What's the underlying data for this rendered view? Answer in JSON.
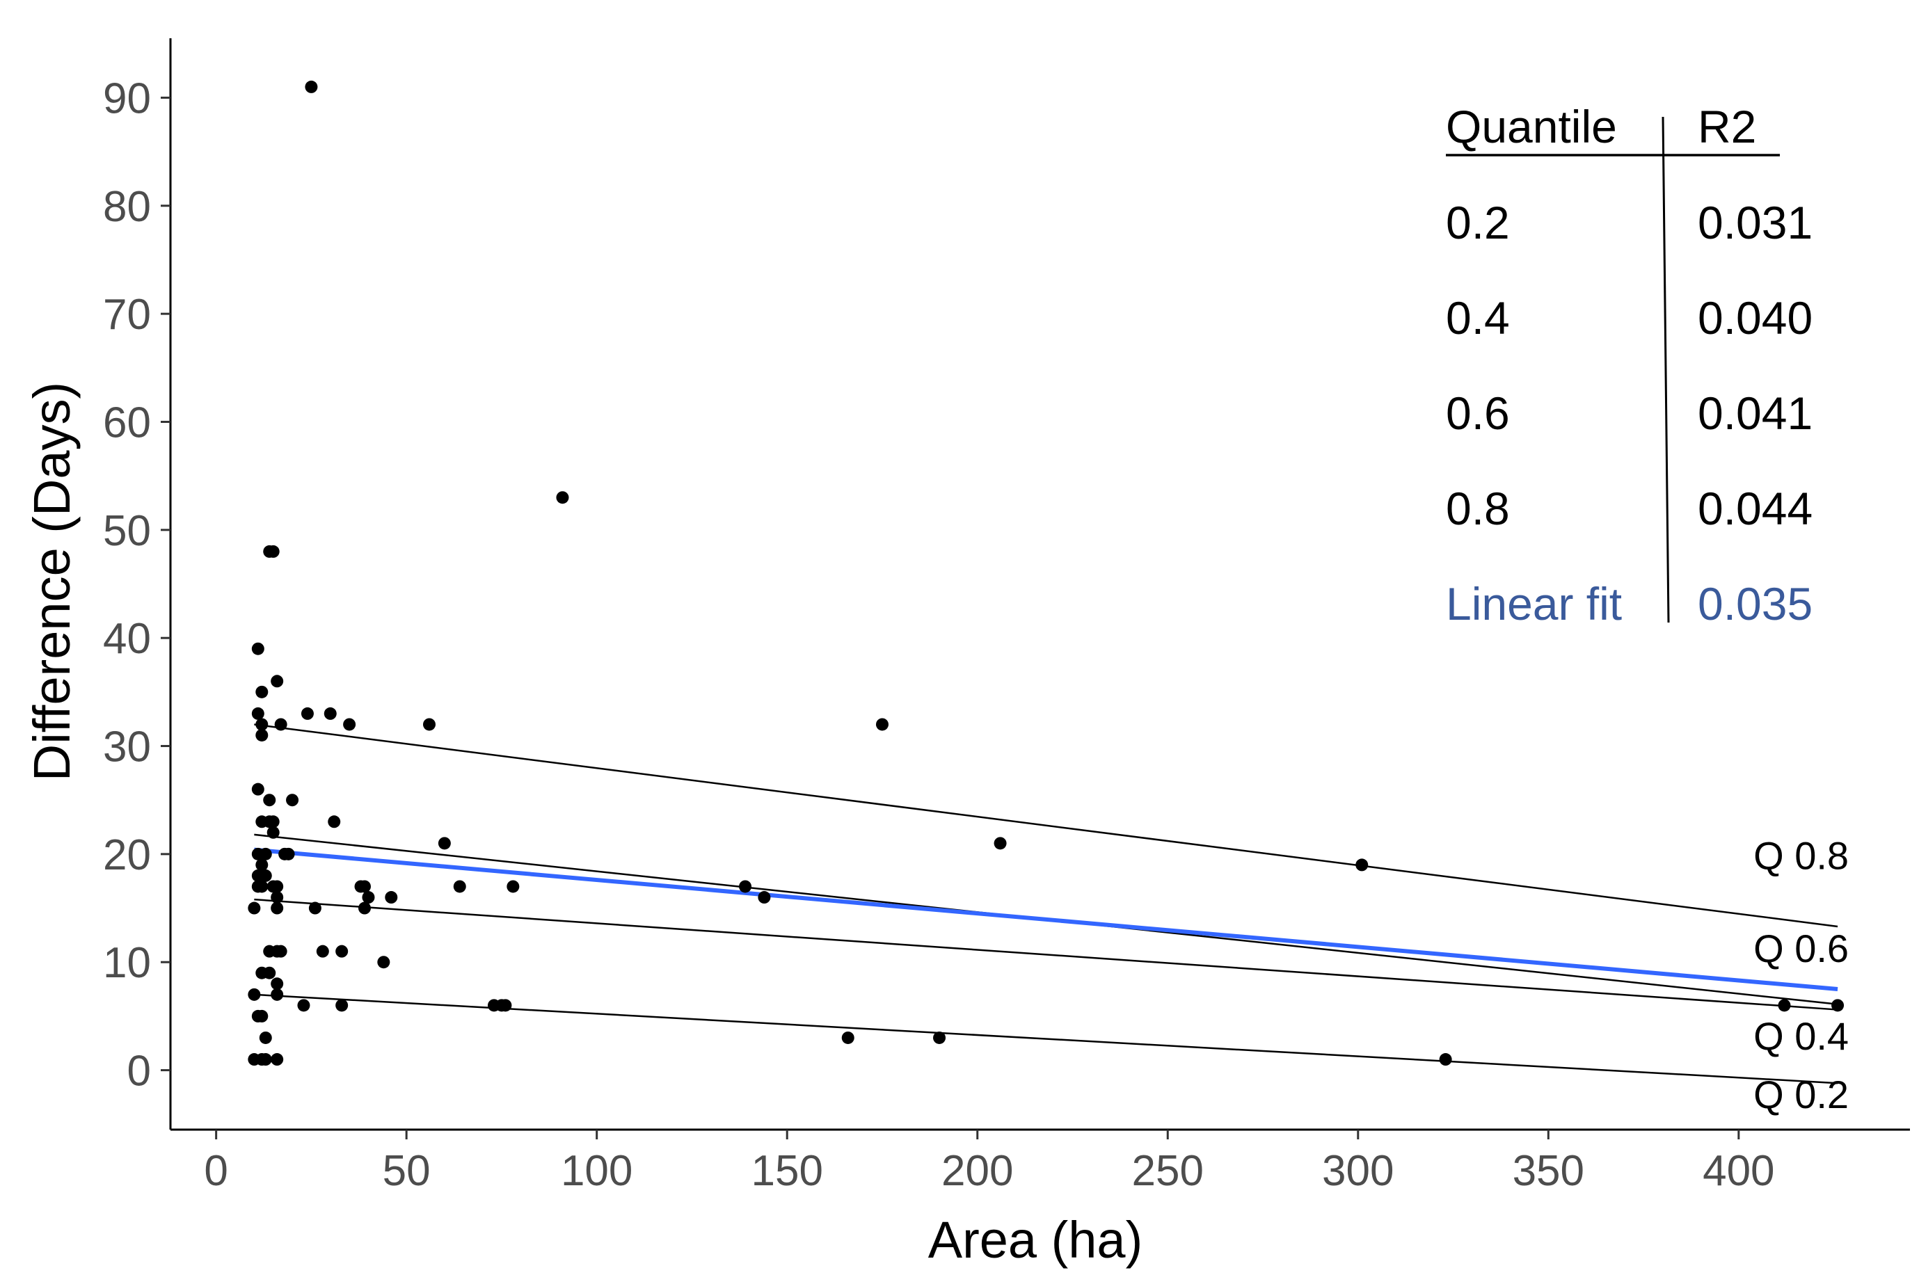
{
  "chart_data": {
    "type": "scatter",
    "title": "",
    "xlabel": "Area (ha)",
    "ylabel": "Difference (Days)",
    "xlim": [
      -12,
      445
    ],
    "ylim": [
      -5.5,
      95.5
    ],
    "xticks": [
      0,
      50,
      100,
      150,
      200,
      250,
      300,
      350,
      400
    ],
    "yticks": [
      0,
      10,
      20,
      30,
      40,
      50,
      60,
      70,
      80,
      90
    ],
    "grid": false,
    "points": [
      [
        25,
        91
      ],
      [
        91,
        53
      ],
      [
        14,
        48
      ],
      [
        15,
        48
      ],
      [
        11,
        39
      ],
      [
        12,
        35
      ],
      [
        16,
        36
      ],
      [
        11,
        33
      ],
      [
        12,
        32
      ],
      [
        12,
        31
      ],
      [
        17,
        32
      ],
      [
        24,
        33
      ],
      [
        30,
        33
      ],
      [
        35,
        32
      ],
      [
        56,
        32
      ],
      [
        175,
        32
      ],
      [
        11,
        26
      ],
      [
        14,
        25
      ],
      [
        20,
        25
      ],
      [
        12,
        23
      ],
      [
        14,
        23
      ],
      [
        15,
        23
      ],
      [
        15,
        22
      ],
      [
        31,
        23
      ],
      [
        60,
        21
      ],
      [
        206,
        21
      ],
      [
        11,
        20
      ],
      [
        13,
        20
      ],
      [
        18,
        20
      ],
      [
        19,
        20
      ],
      [
        12,
        19
      ],
      [
        11,
        18
      ],
      [
        13,
        18
      ],
      [
        11,
        17
      ],
      [
        12,
        17
      ],
      [
        15,
        17
      ],
      [
        16,
        17
      ],
      [
        38,
        17
      ],
      [
        39,
        17
      ],
      [
        64,
        17
      ],
      [
        78,
        17
      ],
      [
        139,
        17
      ],
      [
        16,
        16
      ],
      [
        40,
        16
      ],
      [
        46,
        16
      ],
      [
        144,
        16
      ],
      [
        301,
        19
      ],
      [
        10,
        15
      ],
      [
        16,
        15
      ],
      [
        26,
        15
      ],
      [
        39,
        15
      ],
      [
        14,
        11
      ],
      [
        16,
        11
      ],
      [
        17,
        11
      ],
      [
        28,
        11
      ],
      [
        33,
        11
      ],
      [
        44,
        10
      ],
      [
        12,
        9
      ],
      [
        14,
        9
      ],
      [
        16,
        8
      ],
      [
        16,
        7
      ],
      [
        10,
        7
      ],
      [
        23,
        6
      ],
      [
        33,
        6
      ],
      [
        73,
        6
      ],
      [
        75,
        6
      ],
      [
        76,
        6
      ],
      [
        412,
        6
      ],
      [
        426,
        6
      ],
      [
        11,
        5
      ],
      [
        12,
        5
      ],
      [
        13,
        3
      ],
      [
        166,
        3
      ],
      [
        190,
        3
      ],
      [
        10,
        1
      ],
      [
        12,
        1
      ],
      [
        13,
        1
      ],
      [
        16,
        1
      ],
      [
        323,
        1
      ]
    ],
    "quantile_lines": [
      {
        "name": "Q 0.2",
        "x": [
          10,
          426
        ],
        "y": [
          7.0,
          -1.2
        ]
      },
      {
        "name": "Q 0.4",
        "x": [
          10,
          426
        ],
        "y": [
          15.8,
          5.6
        ]
      },
      {
        "name": "Q 0.6",
        "x": [
          10,
          426
        ],
        "y": [
          21.8,
          6.1
        ]
      },
      {
        "name": "Q 0.8",
        "x": [
          10,
          426
        ],
        "y": [
          32.0,
          13.3
        ]
      }
    ],
    "linear_fit": {
      "name": "Linear fit",
      "x": [
        10,
        426
      ],
      "y": [
        20.4,
        7.5
      ],
      "color": "#3366ff"
    },
    "quantile_labels": [
      {
        "text": "Q 0.8",
        "x": 426,
        "y": 18.6
      },
      {
        "text": "Q 0.6",
        "x": 426,
        "y": 10.0
      },
      {
        "text": "Q 0.4",
        "x": 426,
        "y": 1.9
      },
      {
        "text": "Q 0.2",
        "x": 426,
        "y": -3.5
      }
    ],
    "r2_table": {
      "header": [
        "Quantile",
        "R2"
      ],
      "rows": [
        {
          "quantile": "0.2",
          "r2": "0.031",
          "color": "#000000"
        },
        {
          "quantile": "0.4",
          "r2": "0.040",
          "color": "#000000"
        },
        {
          "quantile": "0.6",
          "r2": "0.041",
          "color": "#000000"
        },
        {
          "quantile": "0.8",
          "r2": "0.044",
          "color": "#000000"
        },
        {
          "quantile": "Linear fit",
          "r2": "0.035",
          "color": "#3a5a9b"
        }
      ]
    }
  }
}
